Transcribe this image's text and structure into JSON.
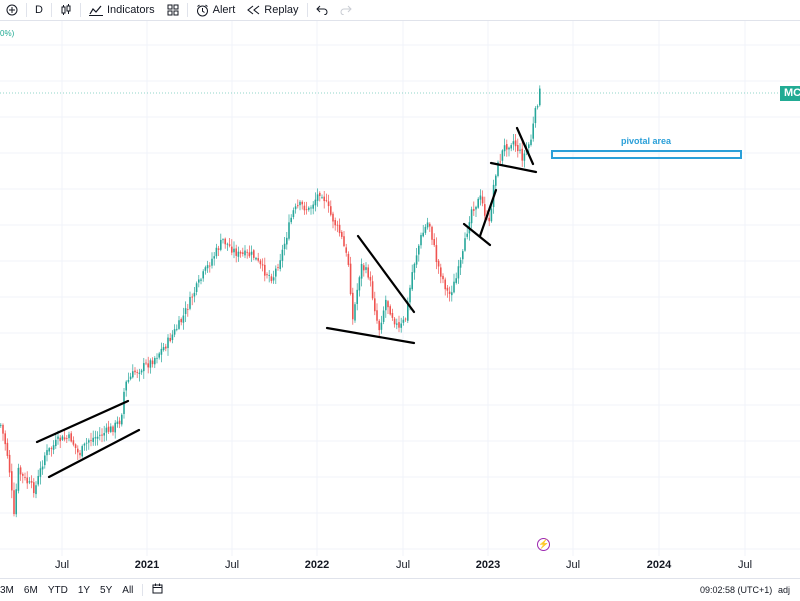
{
  "toolbar": {
    "add_symbol_icon": "plus-circle-icon",
    "interval": "D",
    "chart_type_icon": "candles-icon",
    "indicators_label": "Indicators",
    "layouts_icon": "grid-icon",
    "alert_label": "Alert",
    "replay_label": "Replay",
    "undo_icon": "undo-icon",
    "redo_icon": "redo-icon"
  },
  "chart": {
    "percent_label": "0%)",
    "symbol_badge": "MC",
    "annotation_label": "pivotal area",
    "x_axis": [
      "Jul",
      "2021",
      "Jul",
      "2022",
      "Jul",
      "2023",
      "Jul",
      "2024",
      "Jul"
    ],
    "colors": {
      "up": "#26a69a",
      "down": "#ef5350",
      "annotation": "#2a9fd8",
      "badge": "#22ab94"
    }
  },
  "bottom": {
    "ranges": [
      "3M",
      "6M",
      "YTD",
      "1Y",
      "5Y",
      "All"
    ],
    "calendar_icon": "calendar-icon",
    "clock": "09:02:58 (UTC+1)",
    "adj": "adj"
  }
}
